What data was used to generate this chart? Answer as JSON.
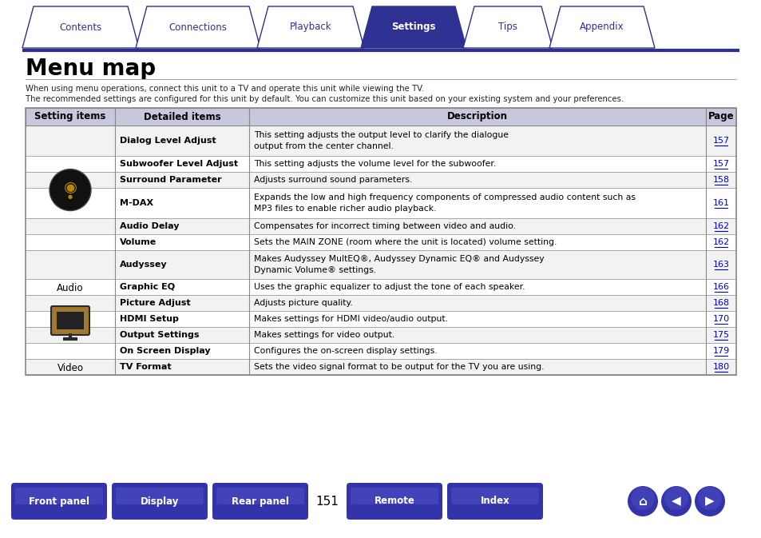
{
  "title": "Menu map",
  "tab_labels": [
    "Contents",
    "Connections",
    "Playback",
    "Settings",
    "Tips",
    "Appendix"
  ],
  "active_tab": "Settings",
  "intro_lines": [
    "When using menu operations, connect this unit to a TV and operate this unit while viewing the TV.",
    "The recommended settings are configured for this unit by default. You can customize this unit based on your existing system and your preferences."
  ],
  "col_headers": [
    "Setting items",
    "Detailed items",
    "Description",
    "Page"
  ],
  "rows": [
    {
      "item": "Dialog Level Adjust",
      "description": "This setting adjusts the output level to clarify the dialogue output from the center channel.",
      "page": "157",
      "bg": "#f2f2f2",
      "two_line": true
    },
    {
      "item": "Subwoofer Level Adjust",
      "description": "This setting adjusts the volume level for the subwoofer.",
      "page": "157",
      "bg": "#ffffff",
      "two_line": false
    },
    {
      "item": "Surround Parameter",
      "description": "Adjusts surround sound parameters.",
      "page": "158",
      "bg": "#f2f2f2",
      "two_line": false
    },
    {
      "item": "M-DAX",
      "description": "Expands the low and high frequency components of compressed audio content such as MP3 files to enable richer audio playback.",
      "page": "161",
      "bg": "#ffffff",
      "two_line": true
    },
    {
      "item": "Audio Delay",
      "description": "Compensates for incorrect timing between video and audio.",
      "page": "162",
      "bg": "#f2f2f2",
      "two_line": false
    },
    {
      "item": "Volume",
      "description": "Sets the MAIN ZONE (room where the unit is located) volume setting.",
      "page": "162",
      "bg": "#ffffff",
      "two_line": false
    },
    {
      "item": "Audyssey",
      "description": "Makes Audyssey MultEQ®, Audyssey Dynamic EQ® and Audyssey Dynamic Volume® settings.",
      "page": "163",
      "bg": "#f2f2f2",
      "two_line": true
    },
    {
      "item": "Graphic EQ",
      "description": "Uses the graphic equalizer to adjust the tone of each speaker.",
      "page": "166",
      "bg": "#ffffff",
      "two_line": false
    },
    {
      "item": "Picture Adjust",
      "description": "Adjusts picture quality.",
      "page": "168",
      "bg": "#f2f2f2",
      "two_line": false
    },
    {
      "item": "HDMI Setup",
      "description": "Makes settings for HDMI video/audio output.",
      "page": "170",
      "bg": "#ffffff",
      "two_line": false
    },
    {
      "item": "Output Settings",
      "description": "Makes settings for video output.",
      "page": "175",
      "bg": "#f2f2f2",
      "two_line": false
    },
    {
      "item": "On Screen Display",
      "description": "Configures the on-screen display settings.",
      "page": "179",
      "bg": "#ffffff",
      "two_line": false
    },
    {
      "item": "TV Format",
      "description": "Sets the video signal format to be output for the TV you are using.",
      "page": "180",
      "bg": "#f2f2f2",
      "two_line": false
    }
  ],
  "audio_rows": [
    0,
    7
  ],
  "video_rows": [
    8,
    12
  ],
  "bottom_buttons": [
    "Front panel",
    "Display",
    "Rear panel",
    "Remote",
    "Index"
  ],
  "page_number": "151",
  "tab_color_active": "#2e3192",
  "tab_color_inactive": "#ffffff",
  "tab_text_active": "#ffffff",
  "tab_text_inactive": "#2e3192",
  "tab_border_color": "#2e3192",
  "button_color": "#3333aa",
  "button_text_color": "#ffffff",
  "bg_color": "#ffffff",
  "table_border_color": "#888888",
  "header_bg": "#c8c8dc",
  "link_color": "#0000cc"
}
